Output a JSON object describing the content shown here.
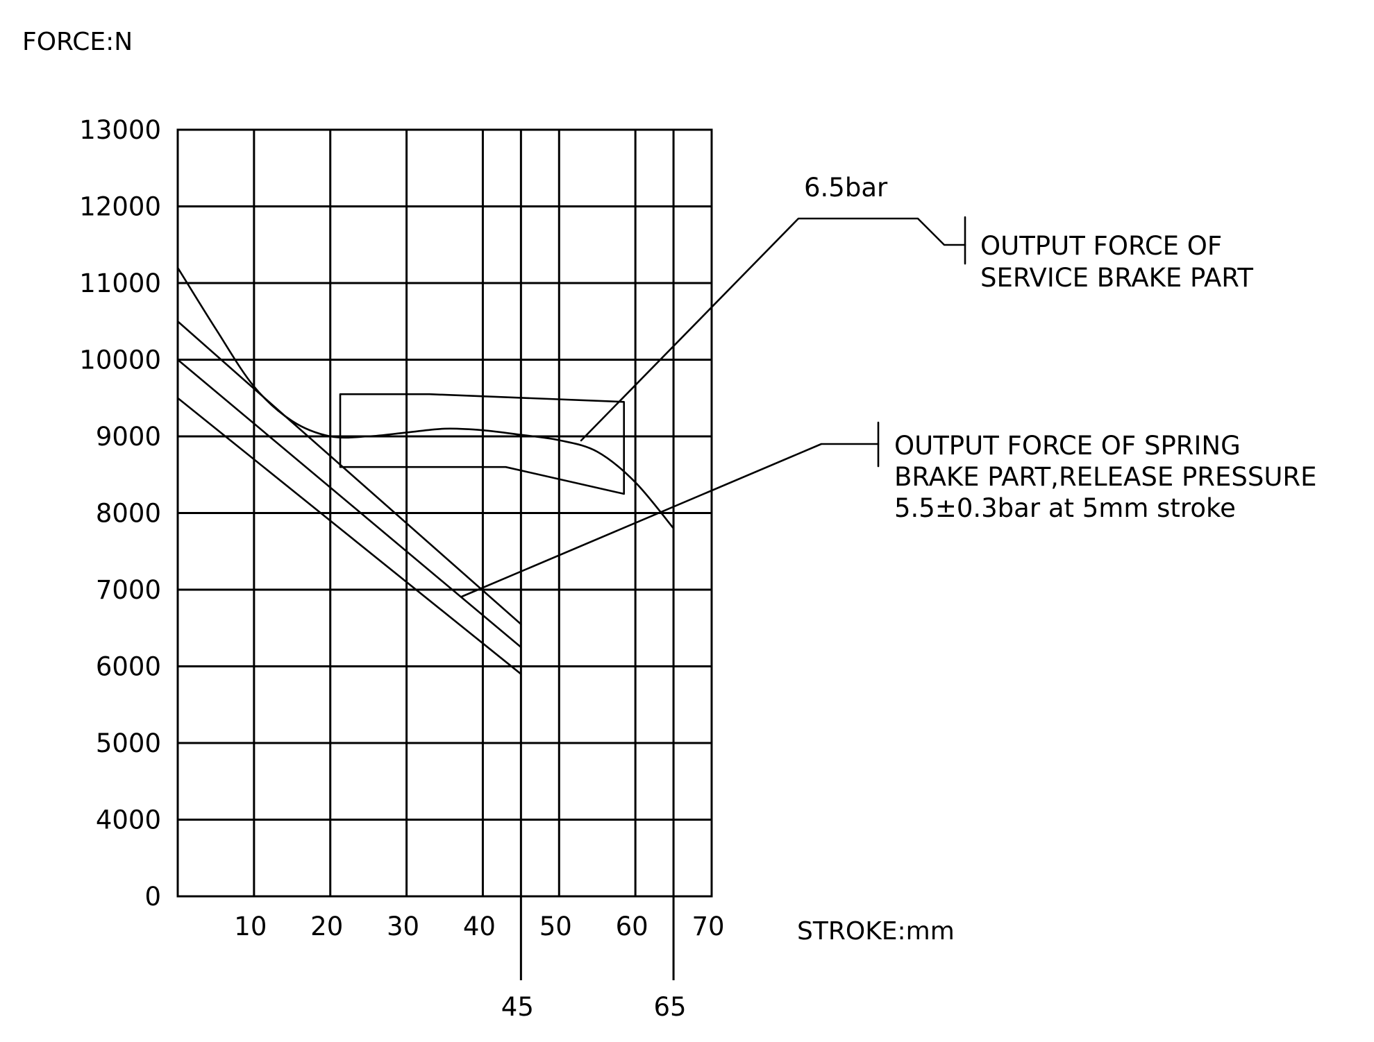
{
  "chart_data": {
    "type": "line",
    "ylabel": "FORCE:N",
    "xlabel": "STROKE:mm",
    "xlim": [
      0,
      70
    ],
    "ylim": [
      0,
      13000
    ],
    "x_ticks": [
      "10",
      "20",
      "30",
      "40",
      "50",
      "60",
      "70"
    ],
    "x_ticks_below": [
      "45",
      "65"
    ],
    "y_ticks": [
      "0",
      "4000",
      "5000",
      "6000",
      "7000",
      "8000",
      "9000",
      "10000",
      "11000",
      "12000",
      "13000"
    ],
    "grid": true,
    "series": [
      {
        "x": [
          0,
          5,
          10,
          15,
          20,
          25,
          30,
          35,
          40,
          45,
          50,
          55,
          60,
          65
        ],
        "y": [
          11200,
          10400,
          9650,
          9200,
          9000,
          9000,
          9050,
          9100,
          9080,
          9020,
          8950,
          8800,
          8400,
          7800
        ]
      },
      {
        "x": [
          0,
          45
        ],
        "y": [
          10500,
          6550
        ]
      },
      {
        "x": [
          0,
          45
        ],
        "y": [
          10000,
          6250
        ]
      },
      {
        "x": [
          0,
          45
        ],
        "y": [
          9500,
          5900
        ]
      }
    ],
    "tolerance_band": {
      "x": [
        21.3,
        33,
        58.5,
        58.5,
        43,
        21.3
      ],
      "y": [
        9550,
        9550,
        9450,
        8250,
        8600,
        8600
      ]
    },
    "annotations": [
      {
        "text": "6.5bar"
      },
      {
        "lines": [
          "OUTPUT FORCE OF",
          "SERVICE BRAKE PART"
        ]
      },
      {
        "lines": [
          "OUTPUT FORCE OF SPRING",
          "BRAKE PART,RELEASE PRESSURE",
          "5.5±0.3bar at 5mm stroke"
        ]
      }
    ]
  }
}
